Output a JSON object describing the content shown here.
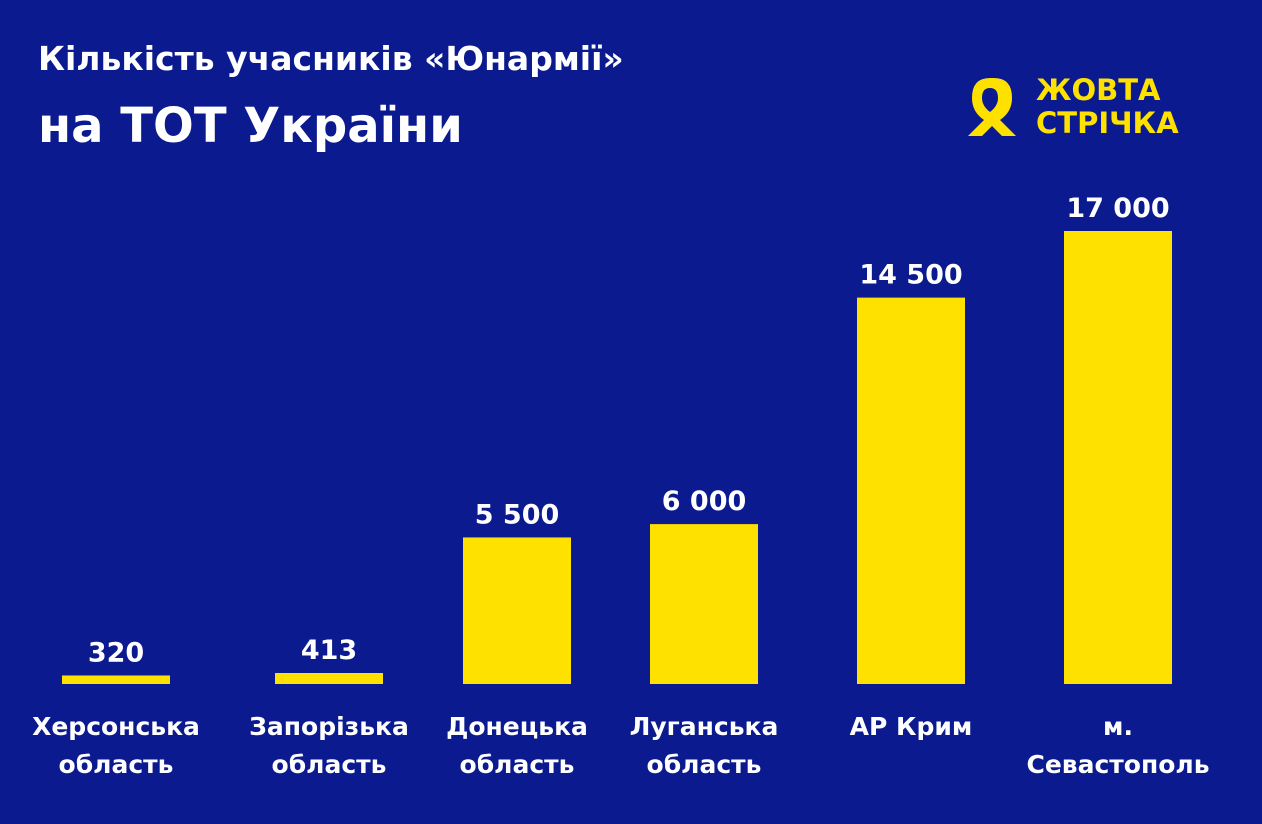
{
  "chart_data": {
    "type": "bar",
    "title": [
      "Кількість учасників «Юнармії»",
      "на ТОТ України"
    ],
    "logo": [
      "ЖОВТА",
      "СТРІЧКА"
    ],
    "categories": [
      "Херсонська\nобласть",
      "Запорізька\nобласть",
      "Донецька\nобласть",
      "Луганська\nобласть",
      "АР Крим",
      "м. Севастополь"
    ],
    "values": [
      320,
      413,
      5500,
      6000,
      14500,
      17000
    ],
    "value_labels": [
      "320",
      "413",
      "5 500",
      "6 000",
      "14 500",
      "17 000"
    ],
    "color": "#ffe100"
  }
}
